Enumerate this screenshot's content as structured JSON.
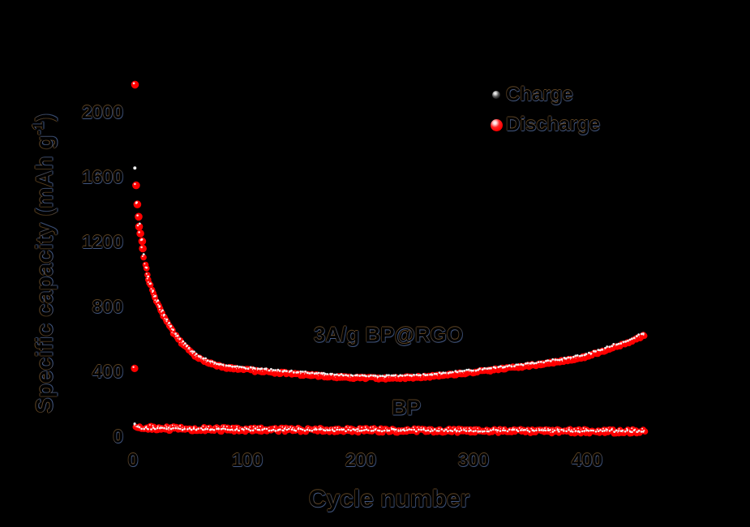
{
  "figure": {
    "background_color": "#000000",
    "accent_red": "#ff0000",
    "text_color": "#000000"
  },
  "axis_labels": {
    "x": "Cycle number",
    "y_pre": "Specific capacity (mAh g",
    "y_sup": "-1",
    "y_post": ")"
  },
  "y_tick_labels": [
    "2000",
    "1600",
    "1200",
    "800",
    "400",
    "0"
  ],
  "x_tick_labels": [
    "0",
    "100",
    "200",
    "300",
    "400"
  ],
  "legend": {
    "charge_label": "Charge",
    "discharge_label": "Discharge",
    "charge_marker": "black-ball-marker",
    "discharge_marker": "red-ball-marker"
  },
  "annotations": {
    "rate_sample": "3A/g  BP@RGO",
    "bp": "BP"
  },
  "chart_data": {
    "type": "scatter",
    "title": "",
    "xlabel": "Cycle number",
    "ylabel": "Specific capacity (mAh g-1)",
    "xlim": [
      0,
      475
    ],
    "ylim": [
      0,
      2300
    ],
    "x_ticks": [
      0,
      100,
      200,
      300,
      400
    ],
    "y_ticks": [
      0,
      400,
      800,
      1200,
      1600,
      2000
    ],
    "grid": false,
    "legend_position": "upper right",
    "legend_entries": [
      "Charge",
      "Discharge"
    ],
    "series": [
      {
        "name": "BP@RGO discharge",
        "role": "discharge",
        "color": "#ff0000",
        "r": 3.8,
        "r_big": 4.8,
        "big_until": 8,
        "jitter": 1.6,
        "step": 1,
        "anchors": [
          [
            1,
            2165
          ],
          [
            2,
            1555
          ],
          [
            3,
            1430
          ],
          [
            4,
            1360
          ],
          [
            5,
            1300
          ],
          [
            6,
            1245
          ],
          [
            7,
            1195
          ],
          [
            8,
            1150
          ],
          [
            10,
            1062
          ],
          [
            12,
            995
          ],
          [
            15,
            925
          ],
          [
            18,
            868
          ],
          [
            22,
            802
          ],
          [
            26,
            745
          ],
          [
            30,
            695
          ],
          [
            35,
            638
          ],
          [
            40,
            590
          ],
          [
            46,
            545
          ],
          [
            52,
            508
          ],
          [
            58,
            480
          ],
          [
            65,
            455
          ],
          [
            72,
            438
          ],
          [
            80,
            425
          ],
          [
            90,
            415
          ],
          [
            100,
            408
          ],
          [
            115,
            398
          ],
          [
            130,
            390
          ],
          [
            145,
            382
          ],
          [
            160,
            374
          ],
          [
            175,
            367
          ],
          [
            190,
            362
          ],
          [
            205,
            358
          ],
          [
            220,
            357
          ],
          [
            235,
            359
          ],
          [
            250,
            364
          ],
          [
            265,
            371
          ],
          [
            280,
            380
          ],
          [
            295,
            391
          ],
          [
            310,
            403
          ],
          [
            325,
            415
          ],
          [
            340,
            427
          ],
          [
            355,
            440
          ],
          [
            370,
            455
          ],
          [
            385,
            472
          ],
          [
            400,
            492
          ],
          [
            415,
            530
          ],
          [
            430,
            565
          ],
          [
            440,
            592
          ],
          [
            450,
            625
          ]
        ]
      },
      {
        "name": "BP@RGO charge",
        "role": "charge",
        "color": "#efefef",
        "r": 1.4,
        "r_big": 2.0,
        "big_until": 2,
        "jitter": 1.1,
        "step": 2,
        "anchors": [
          [
            1,
            1655
          ],
          [
            2,
            1460
          ],
          [
            3,
            1442
          ],
          [
            4,
            1374
          ],
          [
            5,
            1315
          ],
          [
            6,
            1260
          ],
          [
            8,
            1165
          ],
          [
            10,
            1078
          ],
          [
            12,
            1010
          ],
          [
            15,
            940
          ],
          [
            18,
            882
          ],
          [
            22,
            816
          ],
          [
            26,
            759
          ],
          [
            30,
            709
          ],
          [
            35,
            652
          ],
          [
            40,
            604
          ],
          [
            46,
            559
          ],
          [
            52,
            522
          ],
          [
            58,
            494
          ],
          [
            65,
            469
          ],
          [
            72,
            452
          ],
          [
            80,
            439
          ],
          [
            90,
            429
          ],
          [
            100,
            422
          ],
          [
            115,
            412
          ],
          [
            130,
            404
          ],
          [
            145,
            396
          ],
          [
            160,
            388
          ],
          [
            175,
            381
          ],
          [
            190,
            376
          ],
          [
            205,
            372
          ],
          [
            220,
            371
          ],
          [
            235,
            373
          ],
          [
            250,
            378
          ],
          [
            265,
            385
          ],
          [
            280,
            394
          ],
          [
            295,
            405
          ],
          [
            310,
            417
          ],
          [
            325,
            429
          ],
          [
            340,
            441
          ],
          [
            355,
            454
          ],
          [
            370,
            469
          ],
          [
            385,
            486
          ],
          [
            400,
            506
          ],
          [
            415,
            544
          ],
          [
            430,
            579
          ],
          [
            440,
            606
          ],
          [
            450,
            639
          ]
        ]
      },
      {
        "name": "BP discharge",
        "role": "discharge",
        "color": "#ff0000",
        "r": 3.8,
        "r_big": 4.6,
        "big_until": 1,
        "jitter": 2.8,
        "step": 1,
        "anchors": [
          [
            1,
            405
          ],
          [
            2,
            62
          ],
          [
            5,
            55
          ],
          [
            15,
            50
          ],
          [
            40,
            46
          ],
          [
            80,
            42
          ],
          [
            150,
            38
          ],
          [
            250,
            34
          ],
          [
            350,
            31
          ],
          [
            450,
            30
          ]
        ]
      },
      {
        "name": "BP charge",
        "role": "charge",
        "color": "#efefef",
        "r": 1.3,
        "r_big": 1.6,
        "big_until": 2,
        "jitter": 1.4,
        "step": 2,
        "anchors": [
          [
            1,
            72
          ],
          [
            2,
            58
          ],
          [
            5,
            52
          ],
          [
            15,
            48
          ],
          [
            40,
            45
          ],
          [
            80,
            42
          ],
          [
            150,
            39
          ],
          [
            250,
            36
          ],
          [
            350,
            34
          ],
          [
            450,
            33
          ]
        ]
      }
    ]
  }
}
